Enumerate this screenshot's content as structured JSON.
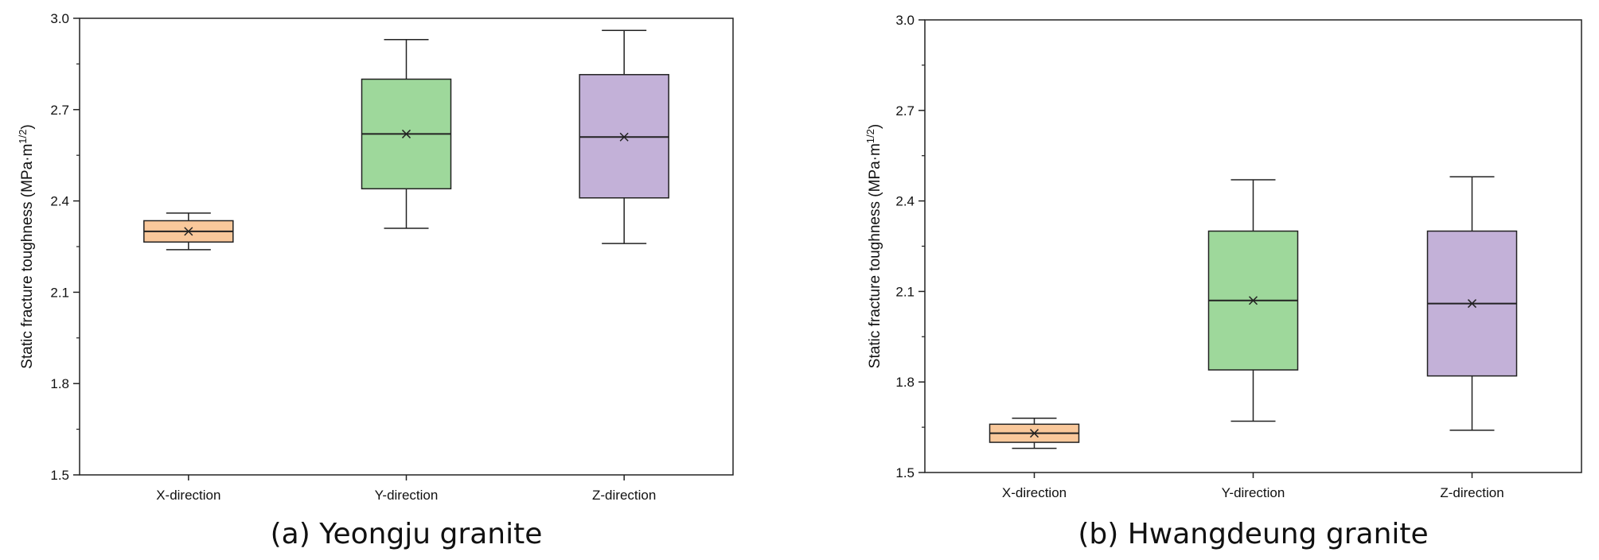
{
  "chart_data": [
    {
      "type": "box",
      "caption": "(a) Yeongju granite",
      "ylabel": "Static fracture toughness (MPa·m",
      "ylabel_sup": "1/2",
      "ylabel_end": ")",
      "ylim": [
        1.5,
        3.0
      ],
      "yticks": [
        "1.5",
        "1.8",
        "2.1",
        "2.4",
        "2.7",
        "3.0"
      ],
      "categories": [
        "X-direction",
        "Y-direction",
        "Z-direction"
      ],
      "boxes": [
        {
          "category": "X-direction",
          "min": 2.24,
          "q1": 2.265,
          "median": 2.3,
          "mean": 2.3,
          "q3": 2.335,
          "max": 2.36,
          "color": "#F9C89B"
        },
        {
          "category": "Y-direction",
          "min": 2.31,
          "q1": 2.44,
          "median": 2.62,
          "mean": 2.62,
          "q3": 2.8,
          "max": 2.93,
          "color": "#9ED89B"
        },
        {
          "category": "Z-direction",
          "min": 2.26,
          "q1": 2.41,
          "median": 2.61,
          "mean": 2.61,
          "q3": 2.815,
          "max": 2.96,
          "color": "#C3B1D8"
        }
      ],
      "grid": false
    },
    {
      "type": "box",
      "caption": "(b) Hwangdeung granite",
      "ylabel": "Static fracture toughness (MPa·m",
      "ylabel_sup": "1/2",
      "ylabel_end": ")",
      "ylim": [
        1.5,
        3.0
      ],
      "yticks": [
        "1.5",
        "1.8",
        "2.1",
        "2.4",
        "2.7",
        "3.0"
      ],
      "categories": [
        "X-direction",
        "Y-direction",
        "Z-direction"
      ],
      "boxes": [
        {
          "category": "X-direction",
          "min": 1.58,
          "q1": 1.6,
          "median": 1.63,
          "mean": 1.63,
          "q3": 1.66,
          "max": 1.68,
          "color": "#F9C89B"
        },
        {
          "category": "Y-direction",
          "min": 1.67,
          "q1": 1.84,
          "median": 2.07,
          "mean": 2.07,
          "q3": 2.3,
          "max": 2.47,
          "color": "#9ED89B"
        },
        {
          "category": "Z-direction",
          "min": 1.64,
          "q1": 1.82,
          "median": 2.06,
          "mean": 2.06,
          "q3": 2.3,
          "max": 2.48,
          "color": "#C3B1D8"
        }
      ],
      "grid": false
    }
  ]
}
